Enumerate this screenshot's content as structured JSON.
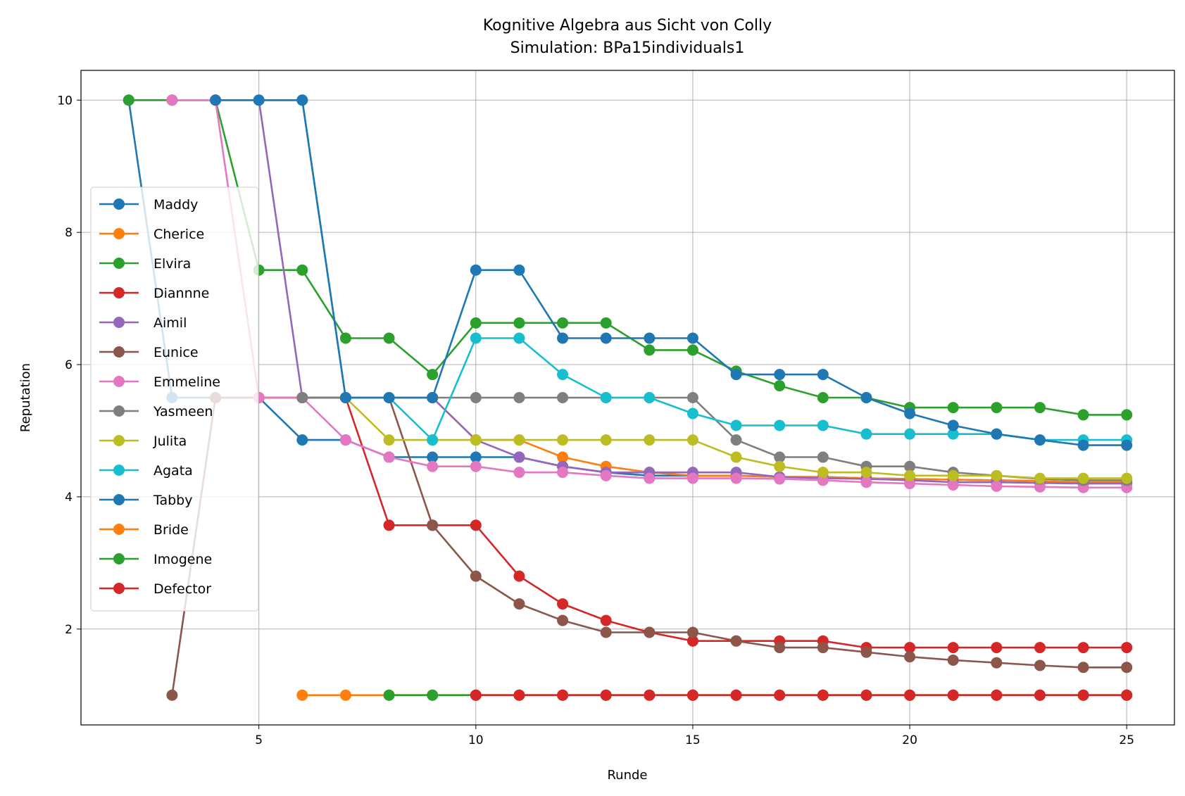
{
  "chart_data": {
    "type": "line",
    "title": "Kognitive Algebra aus Sicht von Colly",
    "subtitle": "Simulation: BPa15individuals1",
    "xlabel": "Runde",
    "ylabel": "Reputation",
    "xlim": [
      0.9,
      26.1
    ],
    "ylim": [
      0.55,
      10.45
    ],
    "xticks": [
      5,
      10,
      15,
      20,
      25
    ],
    "yticks": [
      2,
      4,
      6,
      8,
      10
    ],
    "grid": true,
    "legend_position": "center-left",
    "series": [
      {
        "name": "Maddy",
        "color": "#1f77b4",
        "x": [
          2,
          3,
          4,
          5,
          6,
          7,
          8,
          9,
          10,
          11,
          12,
          13,
          14,
          15,
          16,
          17,
          18,
          19,
          20,
          21,
          22,
          23,
          24,
          25
        ],
        "y": [
          10,
          5.5,
          5.5,
          5.5,
          4.86,
          4.86,
          4.6,
          4.6,
          4.6,
          4.6,
          4.46,
          4.37,
          4.32,
          4.32,
          4.32,
          4.3,
          4.3,
          4.28,
          4.27,
          4.26,
          4.25,
          4.24,
          4.22,
          4.22
        ]
      },
      {
        "name": "Cherice",
        "color": "#ff7f0e",
        "x": [
          6,
          7,
          8,
          9,
          10,
          11,
          12,
          13,
          14,
          15,
          16,
          17,
          18,
          19,
          20,
          21,
          22,
          23,
          24,
          25
        ],
        "y": [
          5.5,
          5.5,
          5.5,
          5.5,
          4.86,
          4.86,
          4.6,
          4.46,
          4.37,
          4.32,
          4.32,
          4.3,
          4.3,
          4.28,
          4.27,
          4.26,
          4.25,
          4.24,
          4.22,
          4.22
        ]
      },
      {
        "name": "Elvira",
        "color": "#2ca02c",
        "x": [
          2,
          3,
          4,
          5,
          6,
          7,
          8,
          9,
          10,
          11,
          12,
          13,
          14,
          15,
          16,
          17,
          18,
          19,
          20,
          21,
          22,
          23,
          24,
          25
        ],
        "y": [
          10,
          10,
          10,
          7.43,
          7.43,
          6.4,
          6.4,
          5.85,
          6.63,
          6.63,
          6.63,
          6.63,
          6.22,
          6.22,
          5.9,
          5.68,
          5.5,
          5.5,
          5.35,
          5.35,
          5.35,
          5.35,
          5.24,
          5.24
        ]
      },
      {
        "name": "Diannne",
        "color": "#d62728",
        "x": [
          4,
          5,
          6,
          7,
          8,
          9,
          10,
          11,
          12,
          13,
          14,
          15,
          16,
          17,
          18,
          19,
          20,
          21,
          22,
          23,
          24,
          25
        ],
        "y": [
          5.5,
          5.5,
          5.5,
          5.5,
          3.57,
          3.57,
          3.57,
          2.8,
          2.38,
          2.13,
          1.95,
          1.82,
          1.82,
          1.82,
          1.82,
          1.72,
          1.72,
          1.72,
          1.72,
          1.72,
          1.72,
          1.72
        ]
      },
      {
        "name": "Aimil",
        "color": "#9467bd",
        "x": [
          3,
          4,
          5,
          6,
          7,
          8,
          9,
          10,
          11,
          12,
          13,
          14,
          15,
          16,
          17,
          18,
          19,
          20,
          21,
          22,
          23,
          24,
          25
        ],
        "y": [
          10,
          10,
          10,
          5.5,
          5.5,
          5.5,
          5.5,
          4.86,
          4.6,
          4.46,
          4.37,
          4.37,
          4.37,
          4.37,
          4.3,
          4.28,
          4.27,
          4.25,
          4.22,
          4.22,
          4.21,
          4.2,
          4.2
        ]
      },
      {
        "name": "Eunice",
        "color": "#8c564b",
        "x": [
          3,
          4,
          5,
          6,
          7,
          8,
          9,
          10,
          11,
          12,
          13,
          14,
          15,
          16,
          17,
          18,
          19,
          20,
          21,
          22,
          23,
          24,
          25
        ],
        "y": [
          1,
          5.5,
          5.5,
          5.5,
          5.5,
          5.5,
          3.57,
          2.8,
          2.38,
          2.13,
          1.95,
          1.95,
          1.95,
          1.82,
          1.72,
          1.72,
          1.65,
          1.58,
          1.53,
          1.49,
          1.45,
          1.42,
          1.42
        ]
      },
      {
        "name": "Emmeline",
        "color": "#e377c2",
        "x": [
          3,
          4,
          5,
          6,
          7,
          8,
          9,
          10,
          11,
          12,
          13,
          14,
          15,
          16,
          17,
          18,
          19,
          20,
          21,
          22,
          23,
          24,
          25
        ],
        "y": [
          10,
          10,
          5.5,
          5.5,
          4.86,
          4.6,
          4.46,
          4.46,
          4.37,
          4.37,
          4.32,
          4.28,
          4.28,
          4.28,
          4.27,
          4.25,
          4.22,
          4.2,
          4.18,
          4.16,
          4.15,
          4.14,
          4.14
        ]
      },
      {
        "name": "Yasmeen",
        "color": "#7f7f7f",
        "x": [
          6,
          7,
          8,
          9,
          10,
          11,
          12,
          13,
          14,
          15,
          16,
          17,
          18,
          19,
          20,
          21,
          22,
          23,
          24,
          25
        ],
        "y": [
          5.5,
          5.5,
          5.5,
          5.5,
          5.5,
          5.5,
          5.5,
          5.5,
          5.5,
          5.5,
          4.86,
          4.6,
          4.6,
          4.46,
          4.46,
          4.37,
          4.32,
          4.27,
          4.25,
          4.25
        ]
      },
      {
        "name": "Julita",
        "color": "#bcbd22",
        "x": [
          7,
          8,
          9,
          10,
          11,
          12,
          13,
          14,
          15,
          16,
          17,
          18,
          19,
          20,
          21,
          22,
          23,
          24,
          25
        ],
        "y": [
          5.5,
          4.86,
          4.86,
          4.86,
          4.86,
          4.86,
          4.86,
          4.86,
          4.86,
          4.6,
          4.46,
          4.37,
          4.37,
          4.32,
          4.32,
          4.32,
          4.28,
          4.28,
          4.28
        ]
      },
      {
        "name": "Agata",
        "color": "#17becf",
        "x": [
          5,
          6,
          7,
          8,
          9,
          10,
          11,
          12,
          13,
          14,
          15,
          16,
          17,
          18,
          19,
          20,
          21,
          22,
          23,
          24,
          25
        ],
        "y": [
          10,
          10,
          5.5,
          5.5,
          4.86,
          6.4,
          6.4,
          5.85,
          5.5,
          5.5,
          5.26,
          5.08,
          5.08,
          5.08,
          4.95,
          4.95,
          4.95,
          4.95,
          4.86,
          4.86,
          4.86
        ]
      },
      {
        "name": "Tabby",
        "color": "#1f77b4",
        "x": [
          4,
          5,
          6,
          7,
          8,
          9,
          10,
          11,
          12,
          13,
          14,
          15,
          16,
          17,
          18,
          19,
          20,
          21,
          22,
          23,
          24,
          25
        ],
        "y": [
          10,
          10,
          10,
          5.5,
          5.5,
          5.5,
          7.43,
          7.43,
          6.4,
          6.4,
          6.4,
          6.4,
          5.85,
          5.85,
          5.85,
          5.5,
          5.26,
          5.08,
          4.95,
          4.86,
          4.78,
          4.78
        ]
      },
      {
        "name": "Bride",
        "color": "#ff7f0e",
        "x": [
          6,
          7,
          8,
          9,
          10,
          11,
          12,
          13,
          14,
          15,
          16,
          17,
          18,
          19,
          20,
          21,
          22,
          23,
          24,
          25
        ],
        "y": [
          1,
          1,
          1,
          1,
          1,
          1,
          1,
          1,
          1,
          1,
          1,
          1,
          1,
          1,
          1,
          1,
          1,
          1,
          1,
          1
        ]
      },
      {
        "name": "Imogene",
        "color": "#2ca02c",
        "x": [
          8,
          9,
          10,
          11,
          12,
          13,
          14,
          15,
          16,
          17,
          18,
          19,
          20,
          21,
          22,
          23,
          24,
          25
        ],
        "y": [
          1,
          1,
          1,
          1,
          1,
          1,
          1,
          1,
          1,
          1,
          1,
          1,
          1,
          1,
          1,
          1,
          1,
          1
        ]
      },
      {
        "name": "Defector",
        "color": "#d62728",
        "x": [
          10,
          11,
          12,
          13,
          14,
          15,
          16,
          17,
          18,
          19,
          20,
          21,
          22,
          23,
          24,
          25
        ],
        "y": [
          1,
          1,
          1,
          1,
          1,
          1,
          1,
          1,
          1,
          1,
          1,
          1,
          1,
          1,
          1,
          1
        ]
      }
    ]
  }
}
